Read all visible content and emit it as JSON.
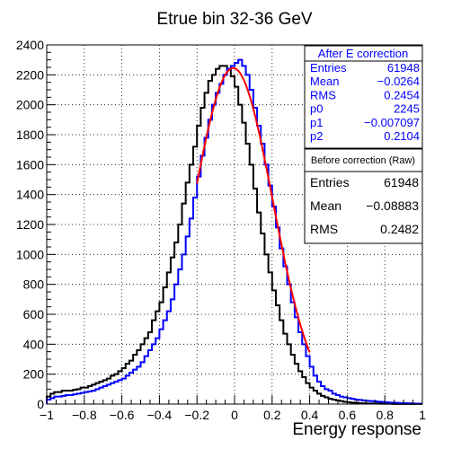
{
  "chart_data": {
    "type": "line",
    "title": "Etrue bin 32-36 GeV",
    "xlabel": "Energy response",
    "ylabel": "",
    "xlim": [
      -1,
      1
    ],
    "ylim": [
      0,
      2400
    ],
    "xticks": [
      -1,
      -0.8,
      -0.6,
      -0.4,
      -0.2,
      0,
      0.2,
      0.4,
      0.6,
      0.8,
      1
    ],
    "xtick_labels": [
      "−1",
      "−0.8",
      "−0.6",
      "−0.4",
      "−0.2",
      "0",
      "0.2",
      "0.4",
      "0.6",
      "0.8",
      "1"
    ],
    "yticks": [
      0,
      200,
      400,
      600,
      800,
      1000,
      1200,
      1400,
      1600,
      1800,
      2000,
      2200,
      2400
    ],
    "ytick_labels": [
      "0",
      "200",
      "400",
      "600",
      "800",
      "1000",
      "1200",
      "1400",
      "1600",
      "1800",
      "2000",
      "2200",
      "2400"
    ],
    "grid": true,
    "bin_width": 0.02,
    "series": [
      {
        "name": "Before correction (Raw)",
        "color": "#000000",
        "style": "step",
        "x": [
          -1.0,
          -0.98,
          -0.96,
          -0.94,
          -0.92,
          -0.9,
          -0.88,
          -0.86,
          -0.84,
          -0.82,
          -0.8,
          -0.78,
          -0.76,
          -0.74,
          -0.72,
          -0.7,
          -0.68,
          -0.66,
          -0.64,
          -0.62,
          -0.6,
          -0.58,
          -0.56,
          -0.54,
          -0.52,
          -0.5,
          -0.48,
          -0.46,
          -0.44,
          -0.42,
          -0.4,
          -0.38,
          -0.36,
          -0.34,
          -0.32,
          -0.3,
          -0.28,
          -0.26,
          -0.24,
          -0.22,
          -0.2,
          -0.18,
          -0.16,
          -0.14,
          -0.12,
          -0.1,
          -0.08,
          -0.06,
          -0.04,
          -0.02,
          0.0,
          0.02,
          0.04,
          0.06,
          0.08,
          0.1,
          0.12,
          0.14,
          0.16,
          0.18,
          0.2,
          0.22,
          0.24,
          0.26,
          0.28,
          0.3,
          0.32,
          0.34,
          0.36,
          0.38,
          0.4,
          0.42,
          0.44,
          0.46,
          0.48,
          0.5,
          0.52,
          0.54,
          0.56,
          0.58,
          0.6,
          0.62,
          0.64,
          0.66,
          0.68,
          0.7,
          0.72,
          0.74,
          0.76,
          0.78,
          0.8,
          0.82,
          0.84,
          0.86,
          0.88,
          0.9,
          0.92,
          0.94,
          0.96,
          0.98
        ],
        "y": [
          50,
          70,
          80,
          80,
          90,
          90,
          90,
          95,
          100,
          110,
          110,
          120,
          130,
          140,
          150,
          160,
          170,
          190,
          200,
          220,
          240,
          270,
          290,
          330,
          360,
          400,
          440,
          480,
          560,
          620,
          680,
          780,
          880,
          980,
          1080,
          1200,
          1340,
          1480,
          1600,
          1720,
          1860,
          1980,
          2080,
          2160,
          2200,
          2240,
          2260,
          2260,
          2240,
          2190,
          2120,
          2000,
          1880,
          1740,
          1600,
          1440,
          1280,
          1140,
          1000,
          880,
          760,
          660,
          560,
          470,
          400,
          330,
          270,
          220,
          180,
          140,
          110,
          90,
          70,
          55,
          45,
          35,
          30,
          25,
          20,
          15,
          12,
          10,
          8,
          6,
          5,
          4,
          4,
          3,
          3,
          2,
          2,
          2,
          1,
          1,
          1,
          1,
          1,
          1,
          1,
          1
        ]
      },
      {
        "name": "After E correction",
        "color": "#0000ff",
        "style": "step",
        "x": [
          -1.0,
          -0.98,
          -0.96,
          -0.94,
          -0.92,
          -0.9,
          -0.88,
          -0.86,
          -0.84,
          -0.82,
          -0.8,
          -0.78,
          -0.76,
          -0.74,
          -0.72,
          -0.7,
          -0.68,
          -0.66,
          -0.64,
          -0.62,
          -0.6,
          -0.58,
          -0.56,
          -0.54,
          -0.52,
          -0.5,
          -0.48,
          -0.46,
          -0.44,
          -0.42,
          -0.4,
          -0.38,
          -0.36,
          -0.34,
          -0.32,
          -0.3,
          -0.28,
          -0.26,
          -0.24,
          -0.22,
          -0.2,
          -0.18,
          -0.16,
          -0.14,
          -0.12,
          -0.1,
          -0.08,
          -0.06,
          -0.04,
          -0.02,
          0.0,
          0.02,
          0.04,
          0.06,
          0.08,
          0.1,
          0.12,
          0.14,
          0.16,
          0.18,
          0.2,
          0.22,
          0.24,
          0.26,
          0.28,
          0.3,
          0.32,
          0.34,
          0.36,
          0.38,
          0.4,
          0.42,
          0.44,
          0.46,
          0.48,
          0.5,
          0.52,
          0.54,
          0.56,
          0.58,
          0.6,
          0.62,
          0.64,
          0.66,
          0.68,
          0.7,
          0.72,
          0.74,
          0.76,
          0.78,
          0.8,
          0.82,
          0.84,
          0.86,
          0.88,
          0.9,
          0.92,
          0.94,
          0.96,
          0.98
        ],
        "y": [
          30,
          40,
          50,
          50,
          55,
          60,
          60,
          65,
          70,
          75,
          80,
          85,
          90,
          100,
          110,
          120,
          130,
          140,
          150,
          160,
          170,
          190,
          210,
          230,
          250,
          280,
          320,
          360,
          400,
          440,
          500,
          560,
          620,
          700,
          800,
          900,
          1000,
          1120,
          1240,
          1380,
          1520,
          1660,
          1780,
          1900,
          2000,
          2080,
          2140,
          2200,
          2240,
          2260,
          2280,
          2300,
          2260,
          2200,
          2100,
          1980,
          1860,
          1740,
          1600,
          1460,
          1320,
          1180,
          1040,
          920,
          800,
          680,
          580,
          480,
          400,
          320,
          250,
          190,
          150,
          120,
          100,
          90,
          70,
          60,
          50,
          45,
          40,
          35,
          30,
          28,
          25,
          22,
          20,
          18,
          16,
          14,
          12,
          10,
          9,
          8,
          7,
          6,
          5,
          4,
          3,
          3
        ]
      },
      {
        "name": "Gaussian fit",
        "color": "#ff0000",
        "style": "curve",
        "function": "gaus",
        "p0": 2245,
        "p1": -0.007097,
        "p2": 0.2104,
        "xrange": [
          -0.2,
          0.4
        ]
      }
    ]
  },
  "stats_after": {
    "header": "After E correction",
    "rows": [
      {
        "label": "Entries",
        "value": "61948"
      },
      {
        "label": "Mean",
        "value": "−0.0264"
      },
      {
        "label": "RMS",
        "value": "0.2454"
      },
      {
        "label": "p0",
        "value": "2245"
      },
      {
        "label": "p1",
        "value": "−0.007097"
      },
      {
        "label": "p2",
        "value": "0.2104"
      }
    ]
  },
  "stats_raw": {
    "header": "Before correction (Raw)",
    "rows": [
      {
        "label": "Entries",
        "value": "61948"
      },
      {
        "label": "Mean",
        "value": "−0.08883"
      },
      {
        "label": "RMS",
        "value": "0.2482"
      }
    ]
  }
}
